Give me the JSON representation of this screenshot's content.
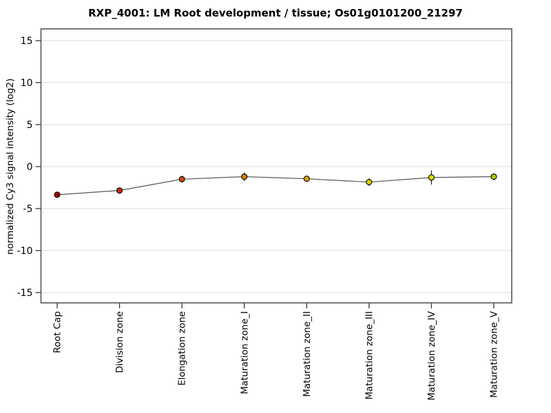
{
  "chart_data": {
    "type": "line",
    "title": "RXP_4001: LM Root development / tissue; Os01g0101200_21297",
    "xlabel": "",
    "ylabel": "normalized Cy3 signal intensity (log2)",
    "categories": [
      "Root Cap",
      "Division zone",
      "Elongation zone",
      "Maturation zone_I",
      "Maturation zone_II",
      "Maturation zone_III",
      "Maturation zone_IV",
      "Maturation zone_V"
    ],
    "values": [
      -3.35,
      -2.85,
      -1.5,
      -1.2,
      -1.45,
      -1.85,
      -1.3,
      -1.2
    ],
    "error_bars": [
      0.15,
      0.15,
      0.4,
      0.5,
      0.25,
      0.45,
      0.85,
      0.4
    ],
    "point_colors": [
      "#A30000",
      "#C23000",
      "#CC4A00",
      "#D97C00",
      "#D9A300",
      "#D9CC00",
      "#DCDC00",
      "#B5C400"
    ],
    "y_ticks": [
      15,
      10,
      5,
      0,
      -5,
      -10,
      -15
    ],
    "ylim": [
      -16.3,
      16.4
    ],
    "grid": "horizontal",
    "legend": "none",
    "colors": {
      "grid": "#E2E2E2",
      "frame": "#555555",
      "line": "#555555",
      "tick": "#333333",
      "text": "#000000",
      "error_bar": "#222222",
      "point_stroke": "#000000"
    }
  }
}
